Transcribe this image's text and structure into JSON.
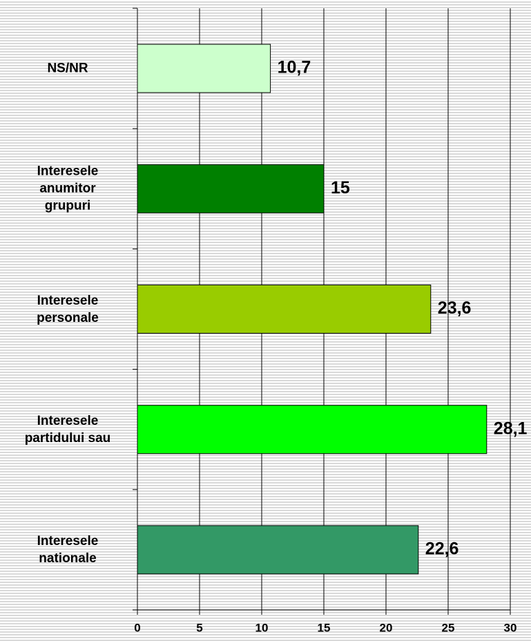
{
  "chart_data": {
    "type": "bar",
    "orientation": "horizontal",
    "categories": [
      "NS/NR",
      "Interesele\nanumitor\ngrupuri",
      "Interesele\npersonale",
      "Interesele\npartidului sau",
      "Interesele\nnationale"
    ],
    "values": [
      10.7,
      15,
      23.6,
      28.1,
      22.6
    ],
    "value_labels": [
      "10,7",
      "15",
      "23,6",
      "28,1",
      "22,6"
    ],
    "colors": [
      "#ccffcc",
      "#008000",
      "#99cc00",
      "#00ff00",
      "#339966"
    ],
    "xlim": [
      0,
      30
    ],
    "xticks": [
      0,
      5,
      10,
      15,
      20,
      25,
      30
    ],
    "grid": true
  }
}
